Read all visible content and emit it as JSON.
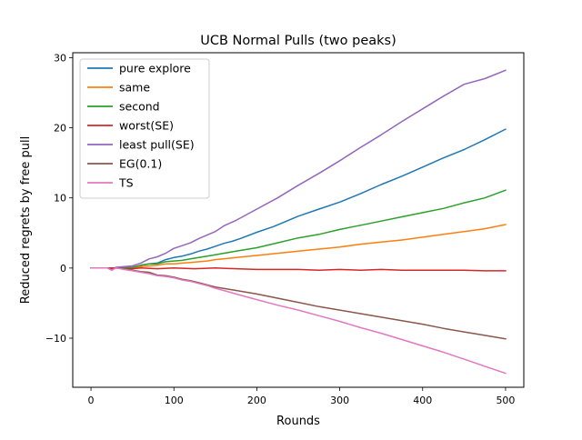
{
  "chart_data": {
    "type": "line",
    "title": "UCB Normal Pulls (two peaks)",
    "xlabel": "Rounds",
    "ylabel": "Reduced regrets by free pull",
    "xlim": [
      -22,
      522
    ],
    "ylim": [
      -17,
      30.7
    ],
    "xticks": [
      0,
      100,
      200,
      300,
      400,
      500
    ],
    "yticks": [
      -10,
      0,
      10,
      20,
      30
    ],
    "xtick_labels": [
      "0",
      "100",
      "200",
      "300",
      "400",
      "500"
    ],
    "ytick_labels": [
      "−10",
      "0",
      "10",
      "20",
      "30"
    ],
    "grid": false,
    "legend_position": "top-left",
    "series": [
      {
        "name": "pure explore",
        "color": "#1f77b4",
        "points": [
          [
            0,
            0
          ],
          [
            20,
            0
          ],
          [
            25,
            -0.2
          ],
          [
            30,
            0.1
          ],
          [
            40,
            0.1
          ],
          [
            50,
            0.1
          ],
          [
            60,
            0.4
          ],
          [
            70,
            0.6
          ],
          [
            80,
            0.7
          ],
          [
            90,
            1.2
          ],
          [
            100,
            1.5
          ],
          [
            110,
            1.7
          ],
          [
            120,
            2.0
          ],
          [
            130,
            2.4
          ],
          [
            140,
            2.7
          ],
          [
            150,
            3.1
          ],
          [
            160,
            3.5
          ],
          [
            170,
            3.8
          ],
          [
            180,
            4.2
          ],
          [
            200,
            5.1
          ],
          [
            220,
            5.9
          ],
          [
            250,
            7.4
          ],
          [
            275,
            8.4
          ],
          [
            300,
            9.4
          ],
          [
            325,
            10.6
          ],
          [
            350,
            11.9
          ],
          [
            375,
            13.1
          ],
          [
            400,
            14.4
          ],
          [
            425,
            15.7
          ],
          [
            450,
            16.9
          ],
          [
            475,
            18.3
          ],
          [
            500,
            19.8
          ]
        ]
      },
      {
        "name": "same",
        "color": "#ff7f0e",
        "points": [
          [
            0,
            0
          ],
          [
            20,
            0
          ],
          [
            30,
            0
          ],
          [
            40,
            0.1
          ],
          [
            50,
            0
          ],
          [
            60,
            0.2
          ],
          [
            70,
            0.3
          ],
          [
            80,
            0.4
          ],
          [
            90,
            0.6
          ],
          [
            100,
            0.6
          ],
          [
            110,
            0.7
          ],
          [
            120,
            0.8
          ],
          [
            130,
            0.9
          ],
          [
            140,
            1.0
          ],
          [
            150,
            1.2
          ],
          [
            175,
            1.5
          ],
          [
            200,
            1.8
          ],
          [
            225,
            2.1
          ],
          [
            250,
            2.4
          ],
          [
            275,
            2.7
          ],
          [
            300,
            3.0
          ],
          [
            325,
            3.4
          ],
          [
            350,
            3.7
          ],
          [
            375,
            4.0
          ],
          [
            400,
            4.4
          ],
          [
            425,
            4.8
          ],
          [
            450,
            5.2
          ],
          [
            475,
            5.6
          ],
          [
            500,
            6.2
          ]
        ]
      },
      {
        "name": "second",
        "color": "#2ca02c",
        "points": [
          [
            0,
            0
          ],
          [
            20,
            0
          ],
          [
            30,
            0
          ],
          [
            40,
            0
          ],
          [
            50,
            0.1
          ],
          [
            60,
            0.4
          ],
          [
            70,
            0.6
          ],
          [
            80,
            0.6
          ],
          [
            90,
            0.9
          ],
          [
            100,
            1.0
          ],
          [
            110,
            1.1
          ],
          [
            120,
            1.3
          ],
          [
            130,
            1.5
          ],
          [
            140,
            1.7
          ],
          [
            150,
            1.9
          ],
          [
            160,
            2.1
          ],
          [
            175,
            2.4
          ],
          [
            200,
            2.9
          ],
          [
            225,
            3.6
          ],
          [
            250,
            4.3
          ],
          [
            275,
            4.8
          ],
          [
            300,
            5.5
          ],
          [
            325,
            6.1
          ],
          [
            350,
            6.7
          ],
          [
            375,
            7.3
          ],
          [
            400,
            7.9
          ],
          [
            425,
            8.5
          ],
          [
            450,
            9.3
          ],
          [
            475,
            10.0
          ],
          [
            500,
            11.1
          ]
        ]
      },
      {
        "name": "worst(SE)",
        "color": "#d62728",
        "points": [
          [
            0,
            0
          ],
          [
            20,
            0
          ],
          [
            30,
            0
          ],
          [
            40,
            -0.1
          ],
          [
            50,
            -0.1
          ],
          [
            60,
            0
          ],
          [
            80,
            -0.1
          ],
          [
            100,
            0
          ],
          [
            125,
            -0.1
          ],
          [
            150,
            0
          ],
          [
            175,
            -0.1
          ],
          [
            200,
            -0.2
          ],
          [
            225,
            -0.2
          ],
          [
            250,
            -0.2
          ],
          [
            275,
            -0.3
          ],
          [
            300,
            -0.2
          ],
          [
            325,
            -0.3
          ],
          [
            350,
            -0.2
          ],
          [
            375,
            -0.3
          ],
          [
            400,
            -0.3
          ],
          [
            425,
            -0.3
          ],
          [
            450,
            -0.3
          ],
          [
            475,
            -0.4
          ],
          [
            500,
            -0.4
          ]
        ]
      },
      {
        "name": "least pull(SE)",
        "color": "#9467bd",
        "points": [
          [
            0,
            0
          ],
          [
            20,
            0
          ],
          [
            25,
            -0.3
          ],
          [
            30,
            0.1
          ],
          [
            40,
            0.2
          ],
          [
            50,
            0.3
          ],
          [
            60,
            0.7
          ],
          [
            70,
            1.3
          ],
          [
            80,
            1.6
          ],
          [
            90,
            2.1
          ],
          [
            100,
            2.8
          ],
          [
            110,
            3.2
          ],
          [
            120,
            3.6
          ],
          [
            130,
            4.2
          ],
          [
            140,
            4.7
          ],
          [
            150,
            5.2
          ],
          [
            160,
            6.0
          ],
          [
            175,
            6.8
          ],
          [
            200,
            8.4
          ],
          [
            225,
            10.0
          ],
          [
            250,
            11.8
          ],
          [
            275,
            13.5
          ],
          [
            300,
            15.3
          ],
          [
            325,
            17.2
          ],
          [
            350,
            19.0
          ],
          [
            375,
            20.9
          ],
          [
            400,
            22.7
          ],
          [
            425,
            24.5
          ],
          [
            450,
            26.2
          ],
          [
            475,
            27.0
          ],
          [
            500,
            28.2
          ]
        ]
      },
      {
        "name": "EG(0.1)",
        "color": "#8c564b",
        "points": [
          [
            0,
            0
          ],
          [
            20,
            0
          ],
          [
            25,
            -0.2
          ],
          [
            30,
            0
          ],
          [
            40,
            -0.1
          ],
          [
            50,
            -0.3
          ],
          [
            60,
            -0.5
          ],
          [
            70,
            -0.6
          ],
          [
            80,
            -1.0
          ],
          [
            90,
            -1.1
          ],
          [
            100,
            -1.3
          ],
          [
            110,
            -1.6
          ],
          [
            120,
            -1.8
          ],
          [
            130,
            -2.1
          ],
          [
            140,
            -2.4
          ],
          [
            150,
            -2.7
          ],
          [
            160,
            -2.9
          ],
          [
            175,
            -3.2
          ],
          [
            200,
            -3.7
          ],
          [
            225,
            -4.3
          ],
          [
            250,
            -4.9
          ],
          [
            275,
            -5.5
          ],
          [
            300,
            -6.0
          ],
          [
            325,
            -6.5
          ],
          [
            350,
            -7.0
          ],
          [
            375,
            -7.5
          ],
          [
            400,
            -8.0
          ],
          [
            425,
            -8.6
          ],
          [
            450,
            -9.1
          ],
          [
            475,
            -9.6
          ],
          [
            500,
            -10.1
          ]
        ]
      },
      {
        "name": "TS",
        "color": "#e377c2",
        "points": [
          [
            0,
            0
          ],
          [
            20,
            0
          ],
          [
            25,
            -0.3
          ],
          [
            30,
            0
          ],
          [
            40,
            -0.2
          ],
          [
            50,
            -0.4
          ],
          [
            60,
            -0.6
          ],
          [
            70,
            -0.8
          ],
          [
            80,
            -1.1
          ],
          [
            90,
            -1.2
          ],
          [
            100,
            -1.4
          ],
          [
            110,
            -1.7
          ],
          [
            120,
            -1.9
          ],
          [
            130,
            -2.2
          ],
          [
            140,
            -2.5
          ],
          [
            150,
            -2.9
          ],
          [
            160,
            -3.2
          ],
          [
            175,
            -3.7
          ],
          [
            200,
            -4.5
          ],
          [
            225,
            -5.3
          ],
          [
            250,
            -6.0
          ],
          [
            275,
            -6.8
          ],
          [
            300,
            -7.6
          ],
          [
            325,
            -8.5
          ],
          [
            350,
            -9.3
          ],
          [
            375,
            -10.2
          ],
          [
            400,
            -11.1
          ],
          [
            425,
            -12.0
          ],
          [
            450,
            -13.0
          ],
          [
            475,
            -14.0
          ],
          [
            500,
            -15.0
          ]
        ]
      }
    ]
  }
}
